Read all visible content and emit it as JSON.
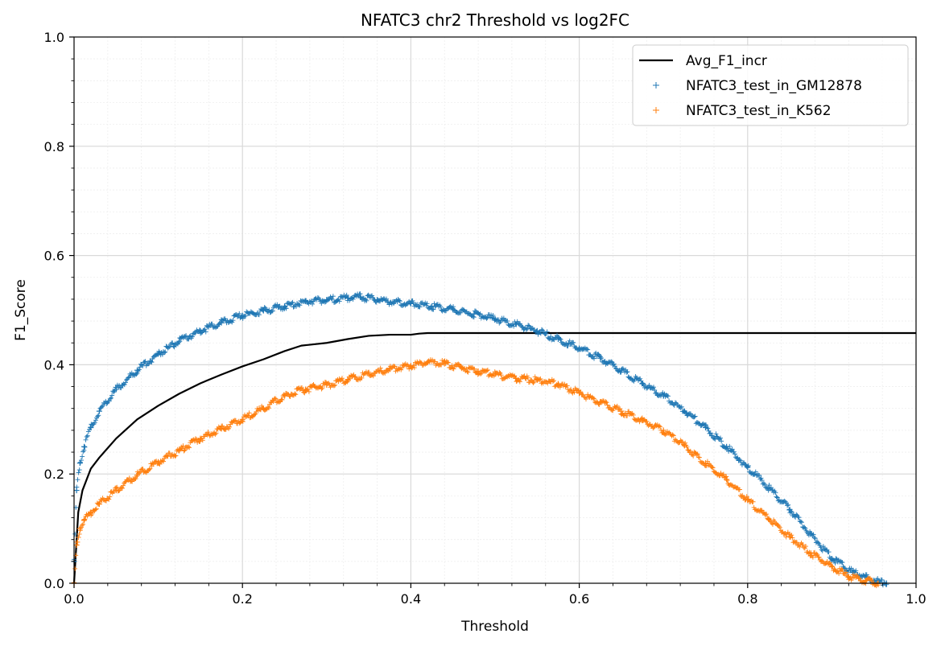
{
  "chart_data": {
    "type": "line",
    "title": "NFATC3 chr2 Threshold vs log2FC",
    "xlabel": "Threshold",
    "ylabel": "F1_Score",
    "xlim": [
      0,
      1
    ],
    "ylim": [
      0,
      1
    ],
    "xticks": [
      "0.0",
      "0.2",
      "0.4",
      "0.6",
      "0.8",
      "1.0"
    ],
    "yticks": [
      "0.0",
      "0.2",
      "0.4",
      "0.6",
      "0.8",
      "1.0"
    ],
    "grid": true,
    "minor_grid": true,
    "legend_position": "top-right",
    "series": [
      {
        "name": "Avg_F1_incr",
        "style": "line",
        "color": "#000000",
        "x": [
          0.0,
          0.005,
          0.01,
          0.02,
          0.03,
          0.05,
          0.075,
          0.1,
          0.125,
          0.15,
          0.175,
          0.2,
          0.225,
          0.25,
          0.27,
          0.3,
          0.325,
          0.35,
          0.375,
          0.4,
          0.41,
          0.42,
          0.45,
          0.5,
          0.6,
          0.7,
          0.8,
          0.9,
          1.0
        ],
        "y": [
          0.0,
          0.13,
          0.17,
          0.21,
          0.23,
          0.265,
          0.3,
          0.325,
          0.347,
          0.366,
          0.382,
          0.397,
          0.41,
          0.425,
          0.435,
          0.44,
          0.447,
          0.453,
          0.455,
          0.455,
          0.457,
          0.458,
          0.458,
          0.458,
          0.458,
          0.458,
          0.458,
          0.458,
          0.458
        ]
      },
      {
        "name": "NFATC3_test_in_GM12878",
        "style": "markers",
        "marker": "+",
        "color": "#1f77b4",
        "x": [
          0.0,
          0.003,
          0.007,
          0.012,
          0.02,
          0.03,
          0.05,
          0.075,
          0.1,
          0.125,
          0.15,
          0.175,
          0.2,
          0.225,
          0.25,
          0.275,
          0.3,
          0.325,
          0.34,
          0.36,
          0.38,
          0.4,
          0.425,
          0.45,
          0.475,
          0.5,
          0.525,
          0.55,
          0.575,
          0.6,
          0.625,
          0.65,
          0.675,
          0.7,
          0.725,
          0.75,
          0.775,
          0.8,
          0.825,
          0.85,
          0.875,
          0.9,
          0.925,
          0.95,
          0.965
        ],
        "y": [
          0.04,
          0.17,
          0.22,
          0.25,
          0.285,
          0.315,
          0.355,
          0.39,
          0.42,
          0.443,
          0.462,
          0.477,
          0.49,
          0.499,
          0.507,
          0.516,
          0.519,
          0.522,
          0.524,
          0.519,
          0.515,
          0.512,
          0.507,
          0.501,
          0.493,
          0.484,
          0.474,
          0.462,
          0.447,
          0.43,
          0.412,
          0.39,
          0.366,
          0.343,
          0.315,
          0.285,
          0.25,
          0.212,
          0.175,
          0.135,
          0.09,
          0.045,
          0.02,
          0.005,
          0.0
        ]
      },
      {
        "name": "NFATC3_test_in_K562",
        "style": "markers",
        "marker": "+",
        "color": "#ff7f0e",
        "x": [
          0.0,
          0.003,
          0.007,
          0.012,
          0.02,
          0.03,
          0.05,
          0.075,
          0.1,
          0.125,
          0.15,
          0.175,
          0.2,
          0.225,
          0.25,
          0.275,
          0.3,
          0.325,
          0.35,
          0.375,
          0.4,
          0.42,
          0.44,
          0.46,
          0.48,
          0.5,
          0.525,
          0.55,
          0.575,
          0.6,
          0.625,
          0.65,
          0.675,
          0.7,
          0.725,
          0.75,
          0.775,
          0.8,
          0.825,
          0.85,
          0.875,
          0.9,
          0.92,
          0.94,
          0.955
        ],
        "y": [
          0.0,
          0.07,
          0.1,
          0.115,
          0.13,
          0.145,
          0.17,
          0.198,
          0.222,
          0.243,
          0.265,
          0.283,
          0.3,
          0.32,
          0.343,
          0.355,
          0.363,
          0.373,
          0.383,
          0.392,
          0.398,
          0.405,
          0.402,
          0.395,
          0.388,
          0.383,
          0.375,
          0.372,
          0.365,
          0.348,
          0.332,
          0.315,
          0.298,
          0.28,
          0.252,
          0.22,
          0.19,
          0.152,
          0.118,
          0.085,
          0.055,
          0.03,
          0.012,
          0.005,
          0.0
        ]
      }
    ]
  }
}
